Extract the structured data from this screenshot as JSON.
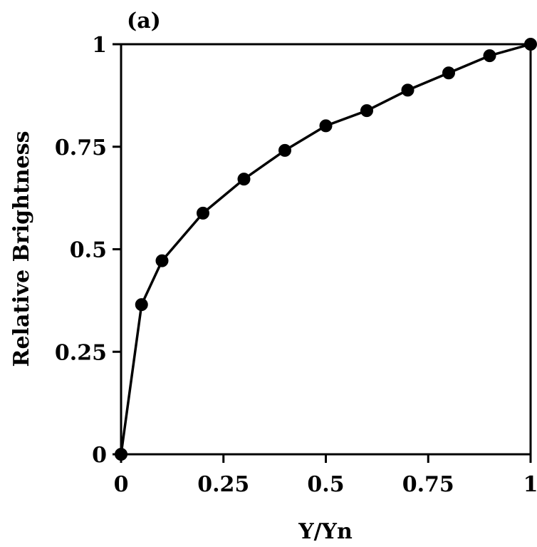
{
  "chart_data": {
    "type": "line",
    "panel_label": "(a)",
    "xlabel": "Y/Yn",
    "ylabel": "Relative Brightness",
    "xlim": [
      0,
      1
    ],
    "ylim": [
      0,
      1
    ],
    "x_ticks": [
      0,
      0.25,
      0.5,
      0.75,
      1
    ],
    "x_tick_labels": [
      "0",
      "0.25",
      "0.5",
      "0.75",
      "1"
    ],
    "y_ticks": [
      0,
      0.25,
      0.5,
      0.75,
      1
    ],
    "y_tick_labels": [
      "0",
      "0.25",
      "0.5",
      "0.75",
      "1"
    ],
    "grid": false,
    "marker": "filled-circle",
    "series": [
      {
        "x": [
          0,
          0.05,
          0.1,
          0.2,
          0.3,
          0.4,
          0.5,
          0.6,
          0.7,
          0.8,
          0.9,
          1.0
        ],
        "y": [
          0,
          0.365,
          0.472,
          0.588,
          0.671,
          0.741,
          0.801,
          0.838,
          0.888,
          0.93,
          0.972,
          1.0
        ]
      }
    ]
  }
}
